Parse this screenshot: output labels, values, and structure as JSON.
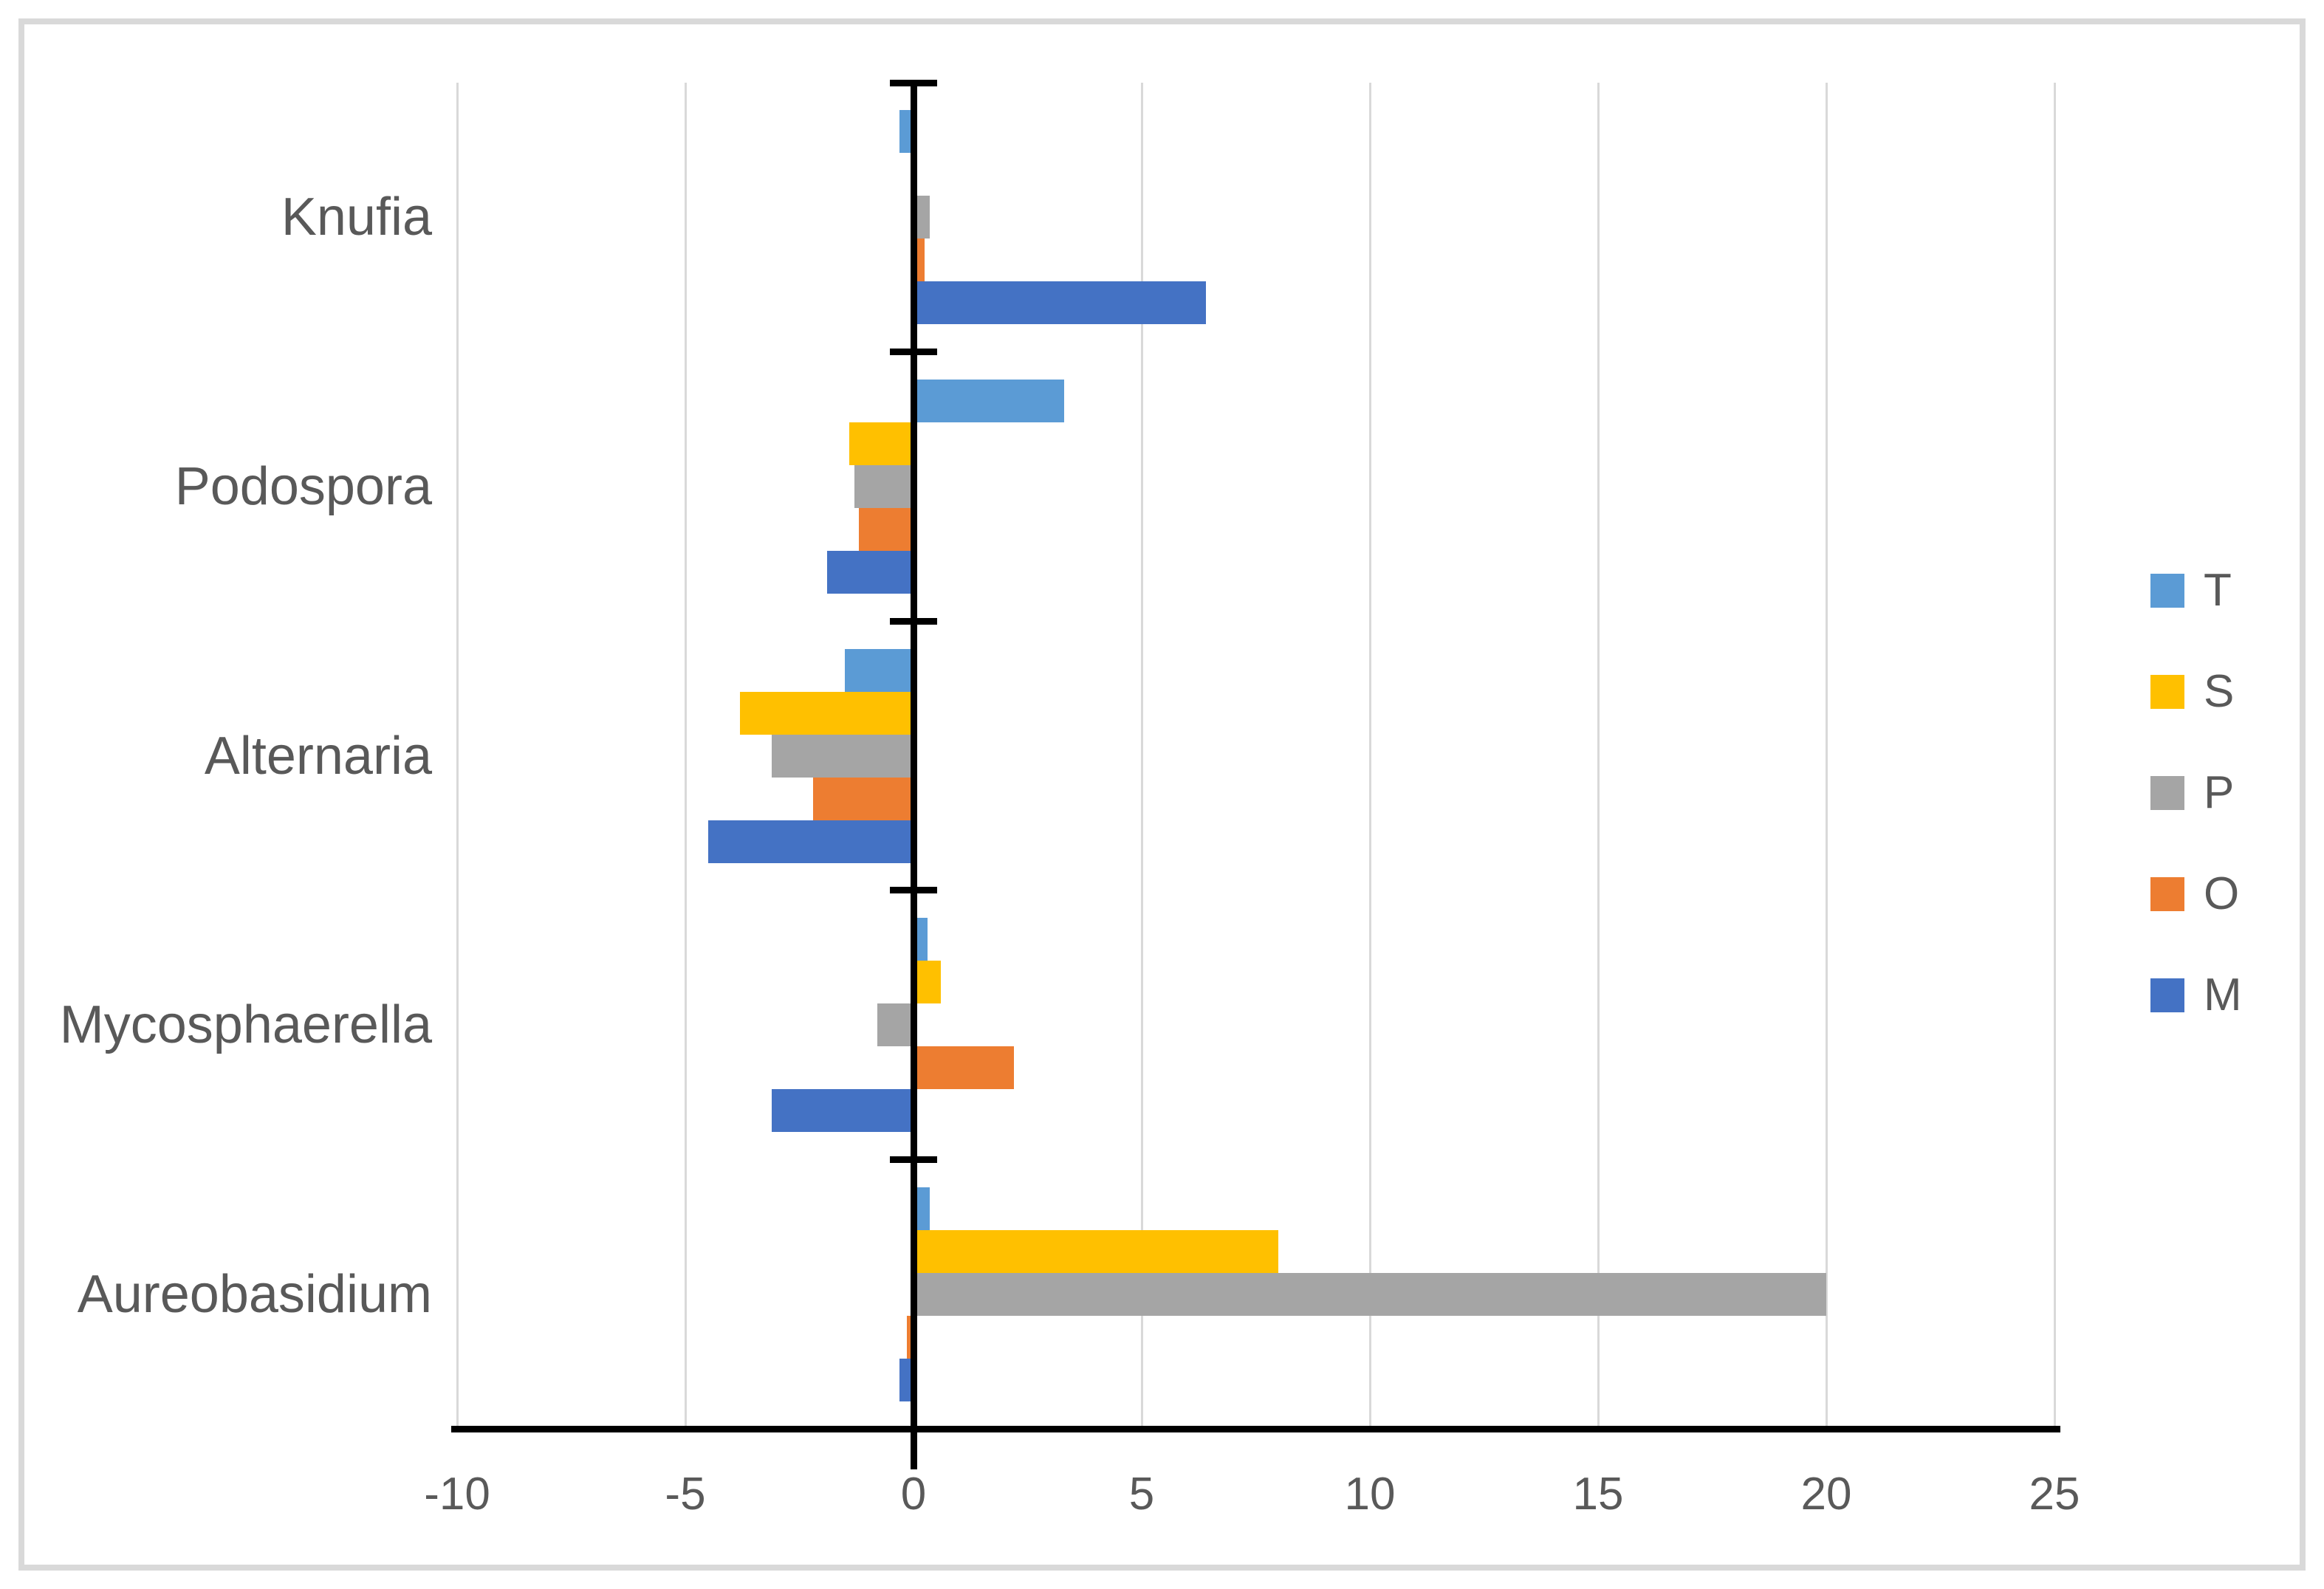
{
  "chart_data": {
    "type": "bar",
    "orientation": "horizontal",
    "title": "",
    "xlabel": "",
    "ylabel": "",
    "grid": true,
    "categories": [
      "Knufia",
      "Podospora",
      "Alternaria",
      "Mycosphaerella",
      "Aureobasidium"
    ],
    "series": [
      {
        "name": "T",
        "color": "#5B9BD5",
        "values": [
          -0.3,
          3.3,
          -1.5,
          0.3,
          0.35
        ]
      },
      {
        "name": "S",
        "color": "#FFC000",
        "values": [
          0,
          -1.4,
          -3.8,
          0.6,
          8.0
        ]
      },
      {
        "name": "P",
        "color": "#A5A5A5",
        "values": [
          0.35,
          -1.3,
          -3.1,
          -0.8,
          20.0
        ]
      },
      {
        "name": "O",
        "color": "#ED7D31",
        "values": [
          0.25,
          -1.2,
          -2.2,
          2.2,
          -0.15
        ]
      },
      {
        "name": "M",
        "color": "#4472C4",
        "values": [
          6.4,
          -1.9,
          -4.5,
          -3.1,
          -0.3
        ]
      }
    ],
    "x_axis": {
      "min": -10,
      "max": 25,
      "tick_step": 5,
      "tick_labels": [
        "-10",
        "-5",
        "0",
        "5",
        "10",
        "15",
        "20",
        "25"
      ]
    },
    "legend": {
      "position": "right",
      "entries": [
        "T",
        "S",
        "P",
        "O",
        "M"
      ]
    }
  },
  "style": {
    "gridline_color": "#d9d9d9",
    "axis_color": "#000000",
    "text_color": "#595959",
    "frame_border_color": "#d9d9d9",
    "background": "#ffffff"
  }
}
